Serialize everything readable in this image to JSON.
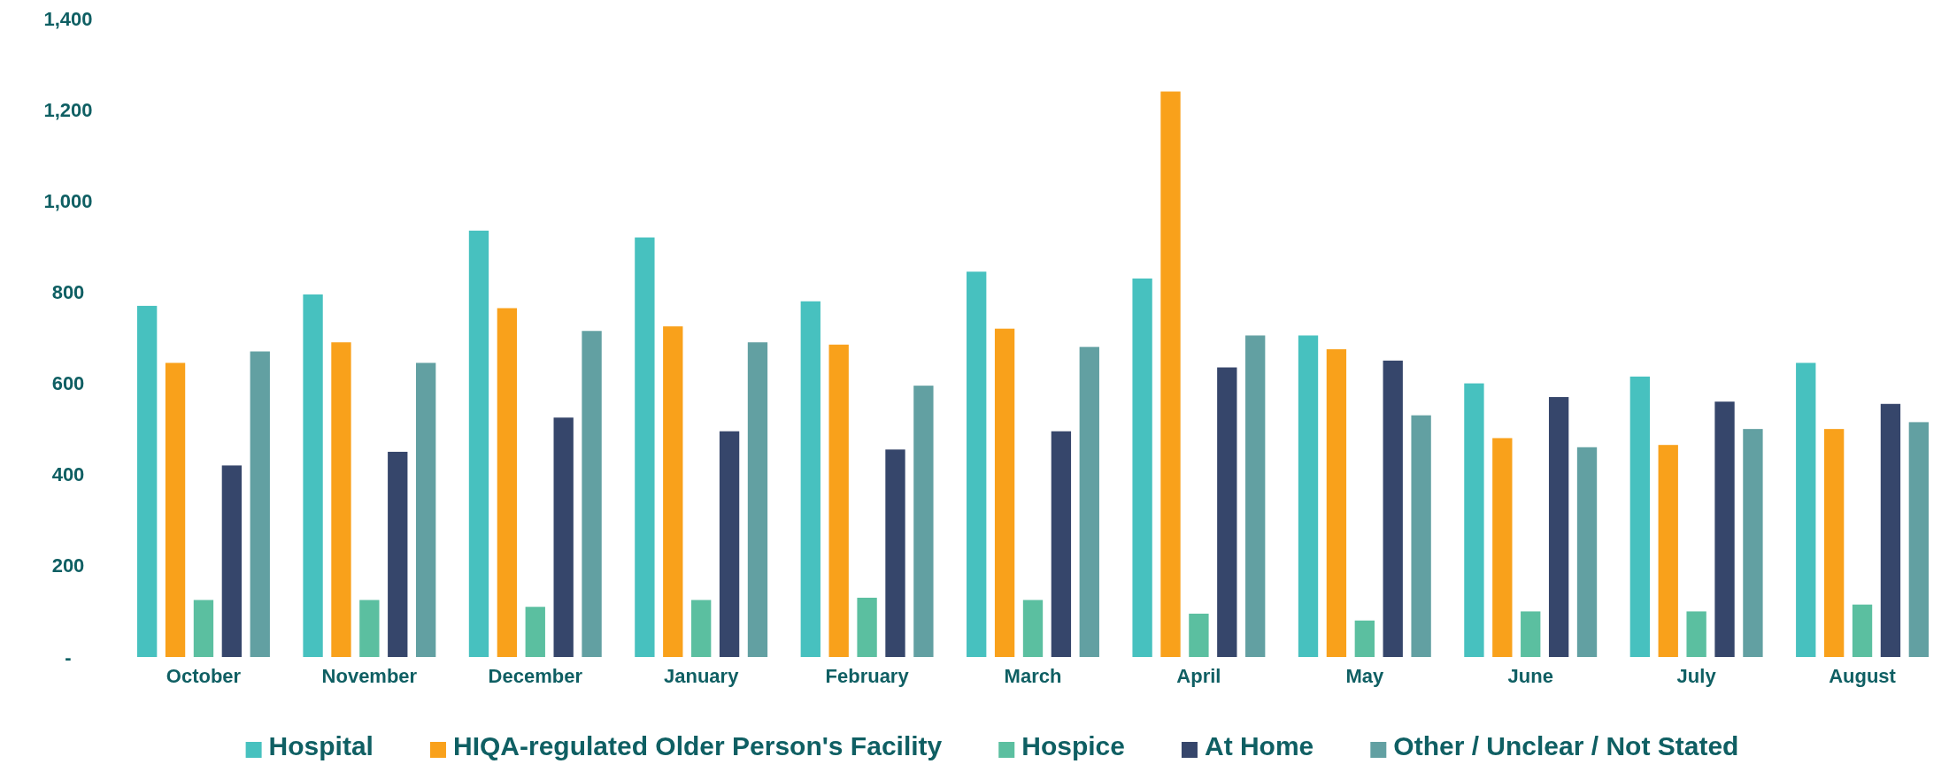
{
  "chart_data": {
    "type": "bar",
    "categories": [
      "October",
      "November",
      "December",
      "January",
      "February",
      "March",
      "April",
      "May",
      "June",
      "July",
      "August"
    ],
    "series": [
      {
        "name": "Hospital",
        "color": "#47c1bf",
        "values": [
          770,
          795,
          935,
          920,
          780,
          845,
          830,
          705,
          600,
          615,
          645
        ]
      },
      {
        "name": "HIQA-regulated Older Person's Facility",
        "color": "#f9a11b",
        "values": [
          645,
          690,
          765,
          725,
          685,
          720,
          1240,
          675,
          480,
          465,
          500
        ]
      },
      {
        "name": "Hospice",
        "color": "#5bbfa0",
        "values": [
          125,
          125,
          110,
          125,
          130,
          125,
          95,
          80,
          100,
          100,
          115
        ]
      },
      {
        "name": "At Home",
        "color": "#36466b",
        "values": [
          420,
          450,
          525,
          495,
          455,
          495,
          635,
          650,
          570,
          560,
          555
        ]
      },
      {
        "name": "Other / Unclear / Not Stated",
        "color": "#62a0a2",
        "values": [
          670,
          645,
          715,
          690,
          595,
          680,
          705,
          530,
          460,
          500,
          515
        ]
      }
    ],
    "ylim": [
      0,
      1400
    ],
    "yticks": [
      {
        "value": 0,
        "label": "-"
      },
      {
        "value": 200,
        "label": "200"
      },
      {
        "value": 400,
        "label": "400"
      },
      {
        "value": 600,
        "label": "600"
      },
      {
        "value": 800,
        "label": "800"
      },
      {
        "value": 1000,
        "label": "1,000"
      },
      {
        "value": 1200,
        "label": "1,200"
      },
      {
        "value": 1400,
        "label": "1,400"
      }
    ],
    "grid": false,
    "legend": "bottom"
  }
}
